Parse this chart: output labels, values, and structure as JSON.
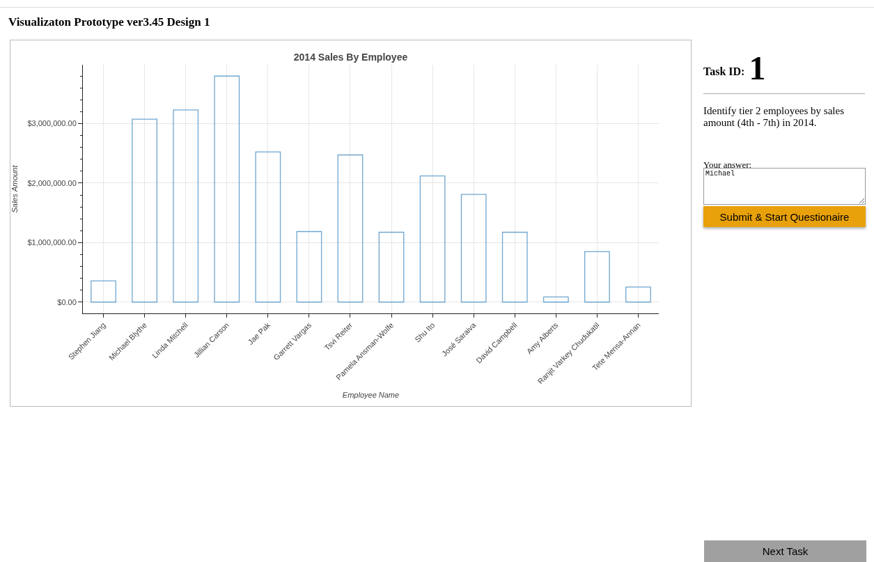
{
  "chart_data": {
    "type": "bar",
    "title": "2014 Sales By Employee",
    "xlabel": "Employee Name",
    "ylabel": "Sales Amount",
    "categories": [
      "Stephen Jiang",
      "Michael Blythe",
      "Linda Mitchell",
      "Jillian Carson",
      "Jae Pak",
      "Garrett Vargas",
      "Tsvi Reiter",
      "Pamela Ansman-Wolfe",
      "Shu Ito",
      "José Saraiva",
      "David Campbell",
      "Amy Alberts",
      "Ranjit Varkey Chudukatil",
      "Tete Mensa-Annan"
    ],
    "values": [
      355000,
      3075000,
      3230000,
      3800000,
      2525000,
      1186000,
      2474000,
      1174000,
      2120000,
      1810000,
      1174000,
      86000,
      847000,
      254000
    ],
    "color": "#6ea6cf",
    "ylim": [
      -190000,
      3990000
    ],
    "yticks": [
      {
        "value": 0,
        "label": "$0.00"
      },
      {
        "value": 1000000,
        "label": "$1,000,000.00"
      },
      {
        "value": 2000000,
        "label": "$2,000,000.00"
      },
      {
        "value": 3000000,
        "label": "$3,000,000.00"
      }
    ],
    "grid": true,
    "annotations": [
      "Visualizaton Prototype ver3.45 Design 1",
      "Task ID:",
      "1",
      "Identify tier 2 employees by sales amount (4th - 7th) in 2014.",
      "Your answer:",
      "Michael",
      "Submit & Start Questionaire",
      "Next Task"
    ]
  }
}
